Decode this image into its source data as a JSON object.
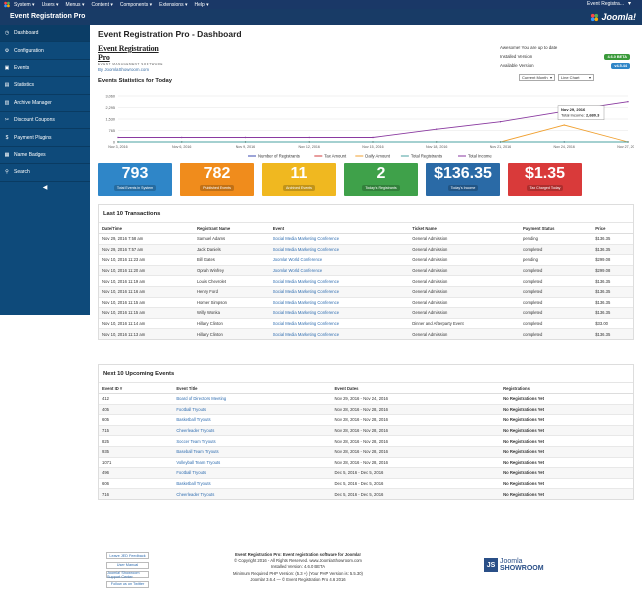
{
  "topbar": {
    "menu": [
      "System ▾",
      "Users ▾",
      "Menus ▾",
      "Content ▾",
      "Components ▾",
      "Extensions ▾",
      "Help ▾"
    ],
    "right_text": "Event Registra...",
    "user_icon": "user-icon"
  },
  "header": {
    "title": "Event Registration Pro",
    "brand": "Joomla!"
  },
  "sidebar": {
    "items": [
      {
        "label": "Dashboard",
        "icon": "dashboard-icon",
        "glyph": "◷"
      },
      {
        "label": "Configuration",
        "icon": "gear-icon",
        "glyph": "⚙"
      },
      {
        "label": "Events",
        "icon": "calendar-icon",
        "glyph": "▣"
      },
      {
        "label": "Statistics",
        "icon": "chart-icon",
        "glyph": "▤"
      },
      {
        "label": "Archive Manager",
        "icon": "archive-icon",
        "glyph": "▥"
      },
      {
        "label": "Discount Coupons",
        "icon": "coupon-icon",
        "glyph": "✂"
      },
      {
        "label": "Payment Plugins",
        "icon": "payment-icon",
        "glyph": "$"
      },
      {
        "label": "Name Badges",
        "icon": "badge-icon",
        "glyph": "▦"
      },
      {
        "label": "Search",
        "icon": "search-icon",
        "glyph": "⚲"
      }
    ],
    "collapse_icon": "◀"
  },
  "dashboard": {
    "title": "Event Registration Pro - Dashboard",
    "logo_title": "Event Registration Pro",
    "logo_sub": "EVENT MANAGEMENT SOFTWARE",
    "byline": "By JoomlaShowroom.com",
    "version": {
      "status": "Awesome! You are up to date",
      "installed_label": "Installed Version",
      "installed_value": "4.6.0 BETA",
      "available_label": "Available Version",
      "available_value": "v4.5.44"
    },
    "stats_title": "Events Statistics for Today",
    "range_select": "Current Month",
    "chart_select": "Line Chart"
  },
  "chart_data": {
    "type": "line",
    "x": [
      "Nov 3, 2016",
      "Nov 6, 2016",
      "Nov 9, 2016",
      "Nov 12, 2016",
      "Nov 15, 2016",
      "Nov 18, 2016",
      "Nov 21, 2016",
      "Nov 24, 2016",
      "Nov 27, 2016"
    ],
    "yticks": [
      "3,060",
      "2,295",
      "1,530",
      "765",
      "0"
    ],
    "ylim": [
      0,
      3060
    ],
    "series": [
      {
        "name": "Number of Registrants",
        "color": "#3b4bb0",
        "values": [
          0,
          0,
          0,
          0,
          0,
          0,
          0,
          0,
          0
        ]
      },
      {
        "name": "Tax Amount",
        "color": "#d23b3b",
        "values": [
          0,
          0,
          0,
          0,
          0,
          0,
          0,
          0,
          0
        ]
      },
      {
        "name": "Daily Amount",
        "color": "#f0a030",
        "values": [
          0,
          0,
          0,
          0,
          0,
          0,
          0,
          1130,
          0
        ]
      },
      {
        "name": "Total Registrants",
        "color": "#4aa0a0",
        "values": [
          0,
          0,
          0,
          0,
          0,
          0,
          0,
          0,
          0
        ]
      },
      {
        "name": "Total Income",
        "color": "#8a3aa0",
        "values": [
          300,
          300,
          300,
          300,
          300,
          850,
          1350,
          2050,
          2680
        ]
      }
    ],
    "tooltip": {
      "date": "Nov 29, 2016",
      "label": "Total Income:",
      "value": "2,680.3"
    },
    "legend": "bottom"
  },
  "cards": [
    {
      "value": "793",
      "label": "Total Events in System",
      "color": "#2f86c8"
    },
    {
      "value": "782",
      "label": "Published Events",
      "color": "#f08c1c"
    },
    {
      "value": "11",
      "label": "Archived Events",
      "color": "#f0b820"
    },
    {
      "value": "2",
      "label": "Today's Registrants",
      "color": "#3fa14a"
    },
    {
      "value": "$136.35",
      "label": "Today's Income",
      "color": "#2a6aa6"
    },
    {
      "value": "$1.35",
      "label": "Tax Charged Today",
      "color": "#d93a3a"
    }
  ],
  "transactions": {
    "title": "Last 10 Transactions",
    "headers": [
      "Date/Time",
      "Registrant Name",
      "Event",
      "Ticket Name",
      "Payment Status",
      "Price"
    ],
    "rows": [
      [
        "Nov 29, 2016 7:58 am",
        "Samuel Adams",
        "Social Media Marketing Conference",
        "General Admission",
        "pending",
        "$136.35"
      ],
      [
        "Nov 29, 2016 7:57 am",
        "Jack Daniels",
        "Social Media Marketing Conference",
        "General Admission",
        "completed",
        "$136.35"
      ],
      [
        "Nov 10, 2016 11:23 am",
        "Bill Gates",
        "Joomla! World Conference",
        "General Admission",
        "pending",
        "$299.08"
      ],
      [
        "Nov 10, 2016 11:20 am",
        "Oprah Winfrey",
        "Joomla! World Conference",
        "General Admission",
        "completed",
        "$299.08"
      ],
      [
        "Nov 10, 2016 11:19 am",
        "Louis Chevrolet",
        "Social Media Marketing Conference",
        "General Admission",
        "completed",
        "$136.35"
      ],
      [
        "Nov 10, 2016 11:16 am",
        "Henry Ford",
        "Social Media Marketing Conference",
        "General Admission",
        "completed",
        "$136.35"
      ],
      [
        "Nov 10, 2016 11:15 am",
        "Homer Simpson",
        "Social Media Marketing Conference",
        "General Admission",
        "completed",
        "$136.35"
      ],
      [
        "Nov 10, 2016 11:15 am",
        "Willy Wonka",
        "Social Media Marketing Conference",
        "General Admission",
        "completed",
        "$136.35"
      ],
      [
        "Nov 10, 2016 11:14 am",
        "Hillary Clinton",
        "Social Media Marketing Conference",
        "Dinner and Afterparty Event",
        "completed",
        "$33.00"
      ],
      [
        "Nov 10, 2016 11:13 am",
        "Hillary Clinton",
        "Social Media Marketing Conference",
        "General Admission",
        "completed",
        "$136.35"
      ]
    ]
  },
  "upcoming": {
    "title": "Next 10 Upcoming Events",
    "headers": [
      "Event ID #",
      "Event Title",
      "Event Dates",
      "Registrations"
    ],
    "rows": [
      [
        "412",
        "Board of Directors Meeting",
        "Nov 29, 2016 - Nov 24, 2016",
        "No Registrations Yet"
      ],
      [
        "405",
        "Football Tryouts",
        "Nov 28, 2016 - Nov 28, 2016",
        "No Registrations Yet"
      ],
      [
        "605",
        "Basketball Tryouts",
        "Nov 28, 2016 - Nov 28, 2016",
        "No Registrations Yet"
      ],
      [
        "715",
        "Cheerleader Tryouts",
        "Nov 28, 2016 - Nov 28, 2016",
        "No Registrations Yet"
      ],
      [
        "825",
        "Soccer Team Tryouts",
        "Nov 28, 2016 - Nov 28, 2016",
        "No Registrations Yet"
      ],
      [
        "935",
        "Baseball Team Tryouts",
        "Nov 28, 2016 - Nov 28, 2016",
        "No Registrations Yet"
      ],
      [
        "1071",
        "Volleyball Team Tryouts",
        "Nov 28, 2016 - Nov 28, 2016",
        "No Registrations Yet"
      ],
      [
        "496",
        "Football Tryouts",
        "Dec 5, 2016 - Dec 5, 2016",
        "No Registrations Yet"
      ],
      [
        "606",
        "Basketball Tryouts",
        "Dec 5, 2016 - Dec 5, 2016",
        "No Registrations Yet"
      ],
      [
        "716",
        "Cheerleader Tryouts",
        "Dec 5, 2016 - Dec 5, 2016",
        "No Registrations Yet"
      ]
    ]
  },
  "footer": {
    "buttons": [
      "Leave JED Feedback",
      "User Manual",
      "Joomla! Showroom Support Center",
      "Follow us on Twitter"
    ],
    "lines": [
      "Event Registration Pro: Event registration software for Joomla!",
      "© Copyright 2016 - All Rights Reserved. www.JoomlaShowroom.com",
      "Installed Version: 4.6.0 BETA",
      "Minimum Required PHP Version: (5.3 +) (Your PHP Version is: 5.5.30)",
      "Joomla! 3.6.4 — © Event Registration Pro 4.6 2016"
    ],
    "brand_box": "JS",
    "brand_line1": "Joomla",
    "brand_line2": "SHOWROOM"
  }
}
